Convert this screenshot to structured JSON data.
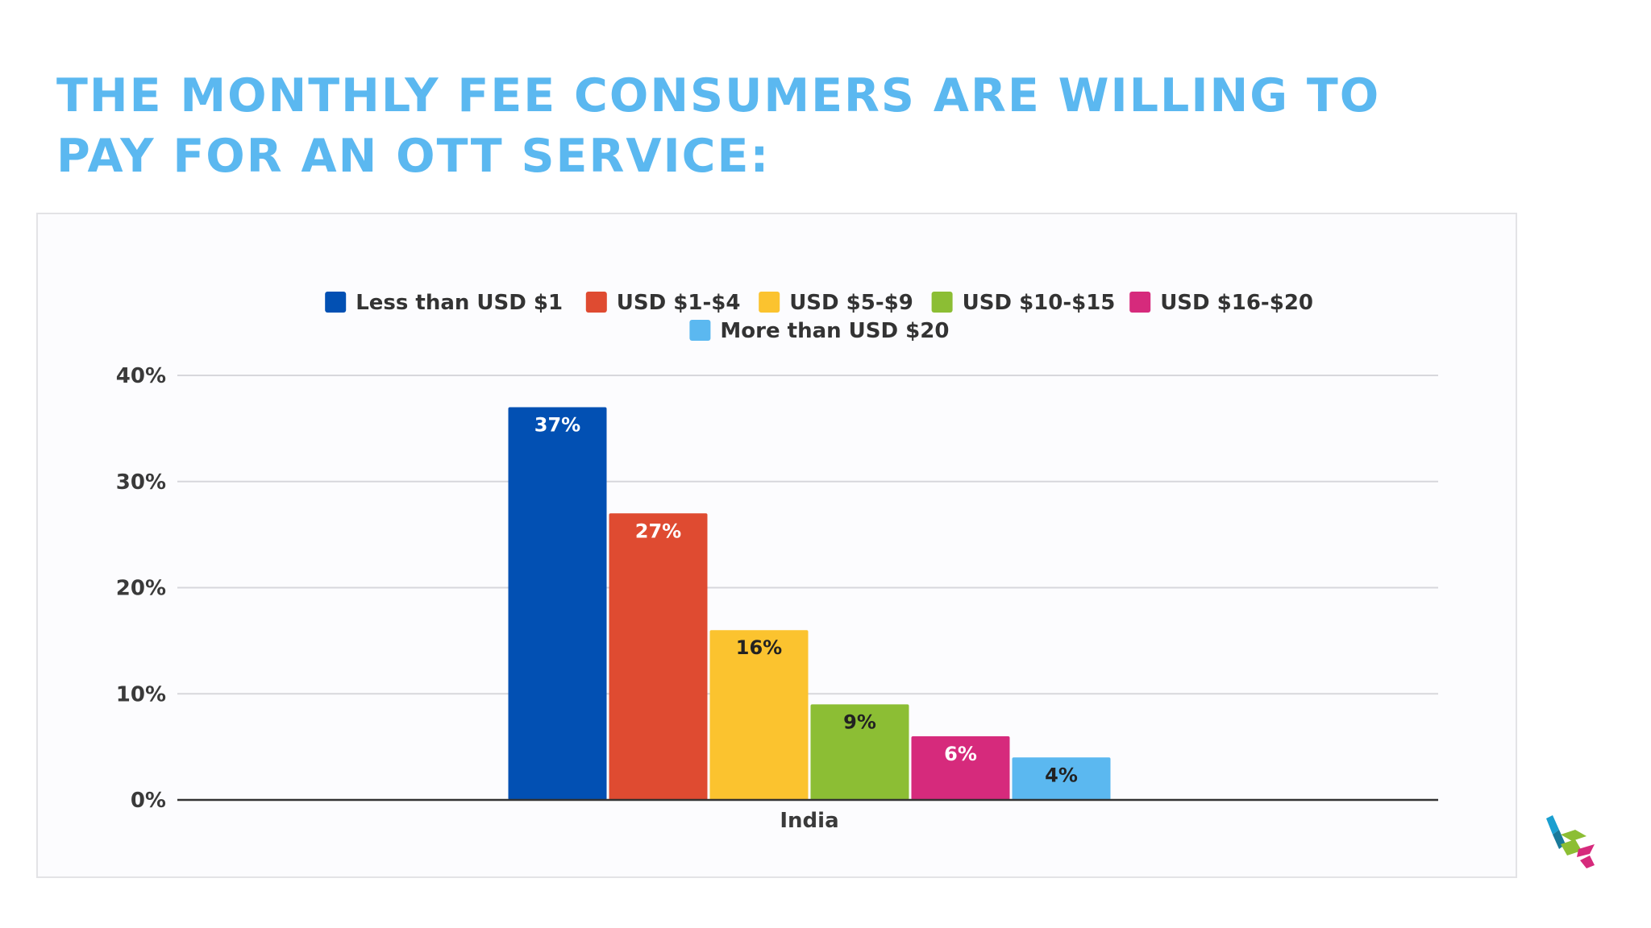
{
  "slide": {
    "title_line1": "THE MONTHLY FEE CONSUMERS ARE WILLING TO",
    "title_line2": "PAY FOR AN OTT SERVICE:"
  },
  "chart_data": {
    "type": "bar",
    "categories": [
      "India"
    ],
    "series": [
      {
        "name": "Less than USD $1",
        "values": [
          37
        ],
        "label": "37%",
        "color": "#0250b3",
        "label_color": "#ffffff"
      },
      {
        "name": "USD $1-$4",
        "values": [
          27
        ],
        "label": "27%",
        "color": "#df4b31",
        "label_color": "#ffffff"
      },
      {
        "name": "USD $5-$9",
        "values": [
          16
        ],
        "label": "16%",
        "color": "#fbc32f",
        "label_color": "#222222"
      },
      {
        "name": "USD $10-$15",
        "values": [
          9
        ],
        "label": "9%",
        "color": "#8cbe34",
        "label_color": "#222222"
      },
      {
        "name": "USD $16-$20",
        "values": [
          6
        ],
        "label": "6%",
        "color": "#d62a7c",
        "label_color": "#ffffff"
      },
      {
        "name": "More than USD $20",
        "values": [
          4
        ],
        "label": "4%",
        "color": "#5bb8f0",
        "label_color": "#222222"
      }
    ],
    "y_ticks": [
      {
        "value": 0,
        "label": "0%"
      },
      {
        "value": 10,
        "label": "10%"
      },
      {
        "value": 20,
        "label": "20%"
      },
      {
        "value": 30,
        "label": "30%"
      },
      {
        "value": 40,
        "label": "40%"
      }
    ],
    "ylim": [
      0,
      40
    ],
    "xlabel": "",
    "ylabel": "",
    "grid": true,
    "legend_position": "top"
  },
  "logo": {
    "colors": [
      "#1a9fd0",
      "#1a7a9a",
      "#8cbe34",
      "#d62a7c"
    ]
  }
}
